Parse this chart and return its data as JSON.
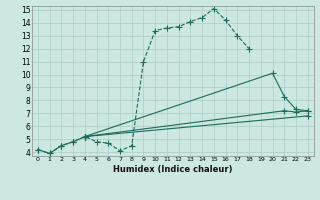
{
  "xlabel": "Humidex (Indice chaleur)",
  "bg_color": "#cce8e0",
  "grid_color": "#aacccc",
  "line_color": "#1a6b5a",
  "xlim": [
    -0.5,
    23.5
  ],
  "ylim": [
    3.7,
    15.3
  ],
  "xticks": [
    0,
    1,
    2,
    3,
    4,
    5,
    6,
    7,
    8,
    9,
    10,
    11,
    12,
    13,
    14,
    15,
    16,
    17,
    18,
    19,
    20,
    21,
    22,
    23
  ],
  "yticks": [
    4,
    5,
    6,
    7,
    8,
    9,
    10,
    11,
    12,
    13,
    14,
    15
  ],
  "line1_x": [
    0,
    1,
    2,
    3,
    4,
    5,
    6,
    7,
    8,
    9,
    10,
    11,
    12,
    13,
    14,
    15,
    16,
    17,
    18
  ],
  "line1_y": [
    4.2,
    3.9,
    4.5,
    4.8,
    5.2,
    4.8,
    4.7,
    4.1,
    4.5,
    11.0,
    13.4,
    13.6,
    13.7,
    14.1,
    14.4,
    15.1,
    14.2,
    13.0,
    12.0
  ],
  "line2_x": [
    4,
    20,
    21,
    22,
    23
  ],
  "line2_y": [
    5.2,
    10.1,
    8.3,
    7.3,
    7.2
  ],
  "line3_x": [
    4,
    21,
    22,
    23
  ],
  "line3_y": [
    5.2,
    7.2,
    7.1,
    7.2
  ],
  "line4_x": [
    4,
    23
  ],
  "line4_y": [
    5.2,
    6.8
  ]
}
